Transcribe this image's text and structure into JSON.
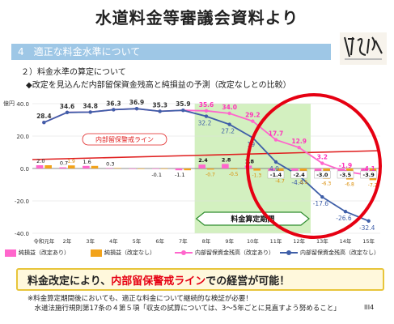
{
  "page_title": "水道料金等審議会資料より",
  "section_band": "4　適正な料金水準について",
  "subheading": "２）料金水準の算定について",
  "chart_caption": "◆改定を見込んだ内部留保資金残高と純損益の予測（改定なしとの比較）",
  "callout": {
    "before": "料金改定により、",
    "highlight": "内部留保警戒ライン",
    "after": "での経営が可能！"
  },
  "note_lines": [
    "※料金算定期間後においても、適正な料金について継続的な検証が必要！",
    "　水道法施行規則第17条の４第５項「収支の試算については、3～5年ごとに見直すよう努めること」"
  ],
  "page_number": "III4",
  "colors": {
    "band": "#9ec7e6",
    "highlight_red": "#e60012",
    "pink": "#ff66cc",
    "orange": "#f2a31b",
    "navy": "#3f5fa8",
    "green_zone": "#c8ecb0",
    "warning_line": "#e02020"
  },
  "chart_data": {
    "type": "bar",
    "unit_label": "億円",
    "categories": [
      "令和元年",
      "2年",
      "3年",
      "4年",
      "5年",
      "6年",
      "7年",
      "8年",
      "9年",
      "10年",
      "11年",
      "12年",
      "13年",
      "14年",
      "15年"
    ],
    "ylim": [
      -40,
      40
    ],
    "y_ticks": [
      "40.0",
      "20.0",
      "0.0",
      "-20.0",
      "-40.0"
    ],
    "series": [
      {
        "name": "純損益（改定あり）",
        "kind": "bar",
        "color": "#ff66cc",
        "values": [
          2.0,
          0.7,
          1.6,
          0.3,
          0.0,
          -0.1,
          -1.1,
          2.4,
          2.8,
          1.8,
          -1.4,
          -2.4,
          -3.0,
          -3.5,
          -3.9
        ],
        "labels": [
          "2.0",
          "0.7",
          "1.6",
          "0.3",
          "",
          "-0.1",
          "-1.1",
          "2.4",
          "2.8",
          "1.8",
          "-1.4",
          "-2.4",
          "-3.0",
          "-3.5",
          "-3.9"
        ]
      },
      {
        "name": "純損益（改定なし）",
        "kind": "bar",
        "color": "#f2a31b",
        "values": [
          2.0,
          1.9,
          1.6,
          0.3,
          0.0,
          -0.1,
          -1.1,
          -0.7,
          -0.5,
          -1.3,
          -4.7,
          -5.5,
          -6.3,
          -6.8,
          -7.2
        ],
        "labels": [
          "",
          "1.9",
          "",
          "",
          "",
          "",
          "",
          "-0.7",
          "-0.5",
          "-1.3",
          "-4.7",
          "-5.5",
          "-6.3",
          "-6.8",
          "-7.2"
        ]
      },
      {
        "name": "内部留保資金残高（改定あり）",
        "kind": "line",
        "color": "#ff66cc",
        "values": [
          28.4,
          34.6,
          34.8,
          36.3,
          36.9,
          35.3,
          35.9,
          35.6,
          34.0,
          29.2,
          17.7,
          12.9,
          3.2,
          -1.9,
          -4.1
        ],
        "labels": [
          "28.4",
          "34.6",
          "34.8",
          "36.3",
          "36.9",
          "35.3",
          "35.9",
          "35.6",
          "34.0",
          "29.2",
          "17.7",
          "12.9",
          "3.2",
          "-1.9",
          "-4.1"
        ]
      },
      {
        "name": "内部留保資金残高（改定なし）",
        "kind": "line",
        "color": "#3f5fa8",
        "values": [
          28.4,
          34.6,
          34.8,
          36.3,
          36.9,
          35.3,
          35.9,
          32.2,
          27.2,
          19.0,
          4.0,
          -4.4,
          -17.6,
          -26.6,
          -32.4
        ],
        "labels": [
          "",
          "",
          "",
          "",
          "",
          "",
          "",
          "32.2",
          "27.2",
          "19",
          "4.0",
          "-4.4",
          "-17.6",
          "-26.6",
          "-32.4"
        ]
      }
    ],
    "warning_line_label": "内部留保警戒ライン",
    "warning_line": {
      "from": 5.5,
      "to": 11.0
    },
    "highlight_zone_label": "料金算定期間",
    "highlight_zone": {
      "from": "8年",
      "to": "12年"
    }
  }
}
